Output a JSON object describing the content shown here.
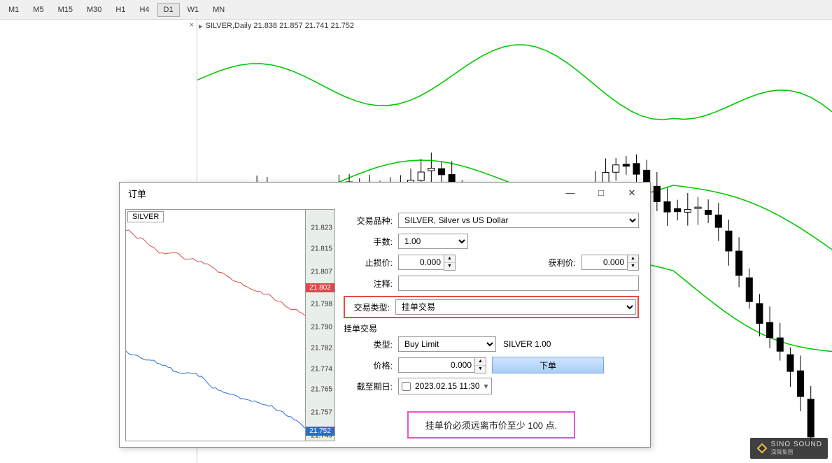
{
  "toolbar": {
    "timeframes": [
      "M1",
      "M5",
      "M15",
      "M30",
      "H1",
      "H4",
      "D1",
      "W1",
      "MN"
    ],
    "active": "D1"
  },
  "chart": {
    "title": "SILVER,Daily  21.838 21.857 21.741 21.752",
    "band_color": "#00c800",
    "candle_up_fill": "#ffffff",
    "candle_down_fill": "#000000",
    "candle_border": "#000000"
  },
  "dialog": {
    "title": "订单",
    "minimize": "—",
    "maximize": "□",
    "close": "✕",
    "mini_chart": {
      "symbol": "SILVER",
      "ask_color": "#d84b4b",
      "bid_color": "#2a6bd6",
      "axis_bg": "#e8eee8",
      "ticks": [
        {
          "v": "21.823",
          "pct": 8
        },
        {
          "v": "21.815",
          "pct": 17
        },
        {
          "v": "21.807",
          "pct": 27
        },
        {
          "v": "21.798",
          "pct": 41
        },
        {
          "v": "21.790",
          "pct": 51
        },
        {
          "v": "21.782",
          "pct": 60
        },
        {
          "v": "21.774",
          "pct": 69
        },
        {
          "v": "21.765",
          "pct": 78
        },
        {
          "v": "21.757",
          "pct": 88
        },
        {
          "v": "21.749",
          "pct": 98
        }
      ],
      "ask_marker": {
        "v": "21.802",
        "pct": 34,
        "bg": "#d84b4b"
      },
      "bid_marker": {
        "v": "21.752",
        "pct": 96,
        "bg": "#2a6bd6"
      }
    },
    "form": {
      "label_symbol": "交易品种:",
      "symbol_value": "SILVER, Silver vs US Dollar",
      "label_volume": "手数:",
      "volume_value": "1.00",
      "label_sl": "止损价:",
      "sl_value": "0.000",
      "label_tp": "获利价:",
      "tp_value": "0.000",
      "label_comment": "注释:",
      "comment_value": "",
      "label_ordertype": "交易类型:",
      "ordertype_value": "挂单交易",
      "section_pending": "挂单交易",
      "label_pendtype": "类型:",
      "pendtype_value": "Buy Limit",
      "pendtype_suffix": "SILVER 1.00",
      "label_price": "价格:",
      "price_value": "0.000",
      "submit_label": "下单",
      "label_expiry": "截至期日:",
      "expiry_value": "2023.02.15 11:30",
      "warning": "挂单价必须远离市价至少 100 点."
    }
  },
  "logo": {
    "text": "SINO SOUND",
    "sub": "漢聲集團"
  }
}
